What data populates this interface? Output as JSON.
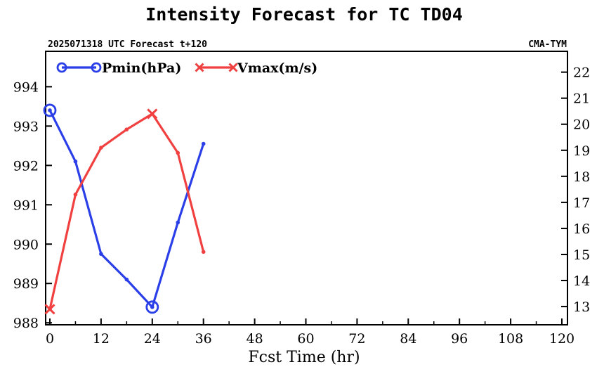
{
  "chart_data": {
    "type": "line",
    "title": "Intensity Forecast for TC TD04",
    "subtitle_left": "2025071318 UTC Forecast t+120",
    "subtitle_right": "CMA-TYM",
    "xlabel": "Fcst Time (hr)",
    "x_ticks": [
      "0",
      "12",
      "24",
      "36",
      "48",
      "60",
      "72",
      "84",
      "96",
      "108",
      "120"
    ],
    "xlim": [
      0,
      120
    ],
    "y_left_ticks": [
      "988",
      "989",
      "990",
      "991",
      "992",
      "993",
      "994"
    ],
    "y_left_lim": [
      987.95,
      994.9
    ],
    "y_right_ticks": [
      "13",
      "14",
      "15",
      "16",
      "17",
      "18",
      "19",
      "20",
      "21",
      "22"
    ],
    "y_right_lim": [
      12.3,
      22.8
    ],
    "grid": false,
    "legend_position": "top-left",
    "series": [
      {
        "name": "Pmin(hPa)",
        "axis": "left",
        "color": "#2a3fe8",
        "marker": "circle",
        "x": [
          0,
          6,
          12,
          18,
          24,
          30,
          36
        ],
        "values": [
          993.4,
          992.1,
          989.75,
          989.1,
          988.4,
          990.55,
          992.55
        ],
        "extreme_markers": [
          0,
          4
        ]
      },
      {
        "name": "Vmax(m/s)",
        "axis": "right",
        "color": "#f04040",
        "marker": "x",
        "x": [
          0,
          6,
          12,
          18,
          24,
          30,
          36
        ],
        "values": [
          12.9,
          17.3,
          19.1,
          19.8,
          20.4,
          18.9,
          15.1
        ],
        "extreme_markers": [
          0,
          4
        ]
      }
    ]
  }
}
